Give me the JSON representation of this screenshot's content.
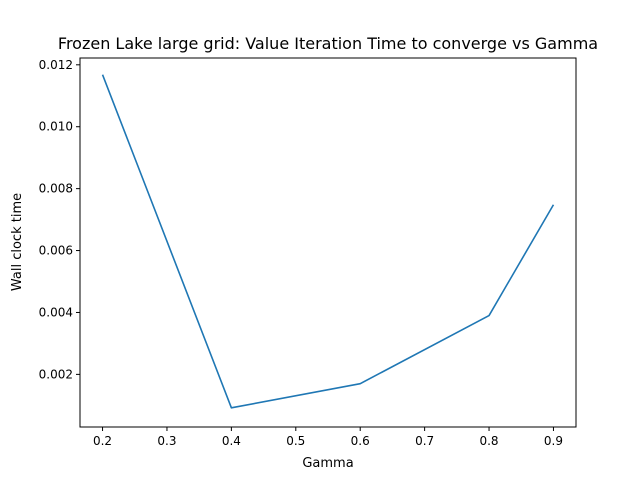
{
  "chart_data": {
    "type": "line",
    "title": "Frozen Lake large grid: Value Iteration Time to converge vs Gamma",
    "xlabel": "Gamma",
    "ylabel": "Wall clock time",
    "x": [
      0.2,
      0.4,
      0.6,
      0.8,
      0.9
    ],
    "series": [
      {
        "values": [
          0.01168,
          0.00092,
          0.0017,
          0.0039,
          0.00748
        ],
        "color": "#1f77b4"
      }
    ],
    "xlim": [
      0.165,
      0.935
    ],
    "ylim": [
      0.0003,
      0.01222
    ],
    "xticks": [
      0.2,
      0.3,
      0.4,
      0.5,
      0.6,
      0.7,
      0.8,
      0.9
    ],
    "xtick_labels": [
      "0.2",
      "0.3",
      "0.4",
      "0.5",
      "0.6",
      "0.7",
      "0.8",
      "0.9"
    ],
    "yticks": [
      0.002,
      0.004,
      0.006,
      0.008,
      0.01,
      0.012
    ],
    "ytick_labels": [
      "0.002",
      "0.004",
      "0.006",
      "0.008",
      "0.010",
      "0.012"
    ],
    "grid": false,
    "legend": "none"
  }
}
